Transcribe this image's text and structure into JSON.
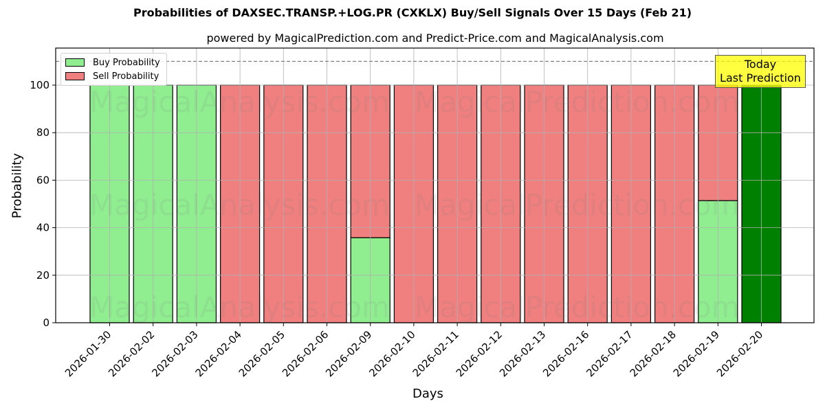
{
  "header": {
    "title": "Probabilities of DAXSEC.TRANSP.+LOG.PR (CXKLX) Buy/Sell Signals Over 15 Days (Feb 21)",
    "subtitle": "powered by MagicalPrediction.com and Predict-Price.com and MagicalAnalysis.com"
  },
  "legend": {
    "buy_label": "Buy Probability",
    "sell_label": "Sell Probability"
  },
  "annotation": {
    "line1": "Today",
    "line2": "Last Prediction"
  },
  "axes": {
    "xlabel": "Days",
    "ylabel": "Probability"
  },
  "colors": {
    "buy": "#90ee90",
    "sell": "#f08080",
    "today": "#008000",
    "annotation_bg": "#ffff00",
    "grid": "#b0b0b0"
  },
  "watermarks": [
    "MagicalAnalysis.com",
    "MagicalPrediction.com"
  ],
  "chart_data": {
    "type": "bar",
    "stacked": true,
    "title": "Probabilities of DAXSEC.TRANSP.+LOG.PR (CXKLX) Buy/Sell Signals Over 15 Days (Feb 21)",
    "subtitle": "powered by MagicalPrediction.com and Predict-Price.com and MagicalAnalysis.com",
    "xlabel": "Days",
    "ylabel": "Probability",
    "ylim": [
      0,
      115
    ],
    "yticks": [
      0,
      20,
      40,
      60,
      80,
      100
    ],
    "grid": true,
    "legend_position": "upper left",
    "reference_line": {
      "y": 110,
      "style": "dashed"
    },
    "categories": [
      "2026-01-30",
      "2026-02-02",
      "2026-02-03",
      "2026-02-04",
      "2026-02-05",
      "2026-02-06",
      "2026-02-09",
      "2026-02-10",
      "2026-02-11",
      "2026-02-12",
      "2026-02-13",
      "2026-02-16",
      "2026-02-17",
      "2026-02-18",
      "2026-02-19",
      "2026-02-20"
    ],
    "series": [
      {
        "name": "Buy Probability",
        "values": [
          100,
          100,
          100,
          0,
          0,
          0,
          35.8,
          0,
          0,
          0,
          0,
          0,
          0,
          0,
          51.4,
          100
        ]
      },
      {
        "name": "Sell Probability",
        "values": [
          0,
          0,
          0,
          100,
          100,
          100,
          64.2,
          100,
          100,
          100,
          100,
          100,
          100,
          100,
          48.6,
          0
        ]
      }
    ],
    "highlight": {
      "category": "2026-02-20",
      "label": "Today\nLast Prediction",
      "color": "#008000"
    }
  }
}
